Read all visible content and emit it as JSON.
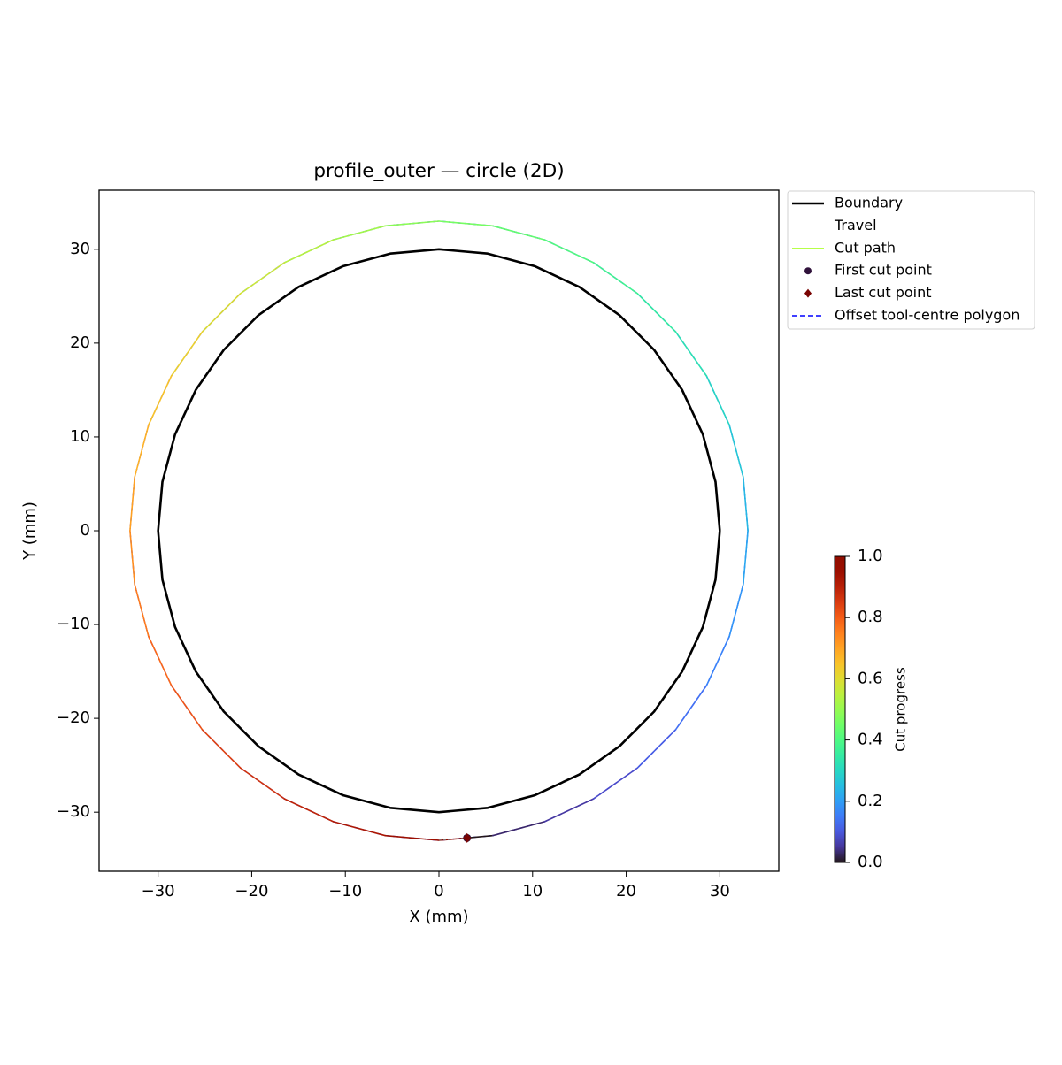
{
  "chart_data": {
    "type": "toolpath",
    "title": "profile_outer — circle (2D)",
    "xlabel": "X (mm)",
    "ylabel": "Y (mm)",
    "xlim": [
      -36.3,
      36.3
    ],
    "ylim": [
      -36.3,
      36.3
    ],
    "xticks": [
      {
        "value": -30,
        "label": "−30"
      },
      {
        "value": -20,
        "label": "−20"
      },
      {
        "value": -10,
        "label": "−10"
      },
      0,
      10,
      20,
      30
    ],
    "yticks": [
      {
        "value": -30,
        "label": "−30"
      },
      {
        "value": -20,
        "label": "−20"
      },
      {
        "value": -10,
        "label": "−10"
      },
      0,
      10,
      20,
      30
    ],
    "series": [
      {
        "name": "Boundary",
        "color": "#000000",
        "style": "solid",
        "x": [
          30,
          29.54,
          28.19,
          25.98,
          22.98,
          19.28,
          15,
          10.26,
          5.21,
          0,
          -5.21,
          -10.26,
          -15,
          -19.28,
          -22.98,
          -25.98,
          -28.19,
          -29.54,
          -30,
          -29.54,
          -28.19,
          -25.98,
          -22.98,
          -19.28,
          -15,
          -10.26,
          -5.21,
          0,
          5.21,
          10.26,
          15,
          19.28,
          22.98,
          25.98,
          28.19,
          29.54,
          30
        ],
        "y": [
          0,
          5.21,
          10.26,
          15,
          19.28,
          22.98,
          25.98,
          28.19,
          29.54,
          30,
          29.54,
          28.19,
          25.98,
          22.98,
          19.28,
          15,
          10.26,
          5.21,
          0,
          -5.21,
          -10.26,
          -15,
          -19.28,
          -22.98,
          -25.98,
          -28.19,
          -29.54,
          -30,
          -29.54,
          -28.19,
          -25.98,
          -22.98,
          -19.28,
          -15,
          -10.26,
          -5.21,
          0
        ]
      },
      {
        "name": "Travel",
        "color": "#808080",
        "style": "dashed",
        "x": [
          0,
          3
        ],
        "y": [
          -33,
          -32.75
        ]
      },
      {
        "name": "Cut path",
        "color": "#adff2f",
        "style": "solid",
        "x": [
          3,
          5.73,
          11.29,
          16.5,
          21.21,
          25.28,
          28.58,
          31.01,
          32.5,
          33,
          32.5,
          31.01,
          28.58,
          25.28,
          21.21,
          16.5,
          11.29,
          5.73,
          0,
          -5.73,
          -11.29,
          -16.5,
          -21.21,
          -25.28,
          -28.58,
          -31.01,
          -32.5,
          -33,
          -32.5,
          -31.01,
          -28.58,
          -25.28,
          -21.21,
          -16.5,
          -11.29,
          -5.73,
          0,
          3
        ],
        "y": [
          -32.75,
          -32.5,
          -31.01,
          -28.58,
          -25.28,
          -21.21,
          -16.5,
          -11.29,
          -5.73,
          0,
          5.73,
          11.29,
          16.5,
          21.21,
          25.28,
          28.58,
          31.01,
          32.5,
          33,
          32.5,
          31.01,
          28.58,
          25.28,
          21.21,
          16.5,
          11.29,
          5.73,
          0,
          -5.73,
          -11.29,
          -16.5,
          -21.21,
          -25.28,
          -28.58,
          -31.01,
          -32.5,
          -33,
          -32.75
        ],
        "progress": [
          0,
          0.027,
          0.054,
          0.081,
          0.108,
          0.135,
          0.162,
          0.189,
          0.216,
          0.243,
          0.27,
          0.297,
          0.324,
          0.351,
          0.378,
          0.405,
          0.432,
          0.459,
          0.486,
          0.514,
          0.541,
          0.568,
          0.595,
          0.622,
          0.649,
          0.676,
          0.703,
          0.73,
          0.757,
          0.784,
          0.811,
          0.838,
          0.865,
          0.892,
          0.919,
          0.946,
          0.973,
          1
        ]
      },
      {
        "name": "First cut point",
        "color": "#30123b",
        "marker": "circle",
        "x": [
          3
        ],
        "y": [
          -32.75
        ]
      },
      {
        "name": "Last cut point",
        "color": "#7a0403",
        "marker": "diamond",
        "x": [
          3
        ],
        "y": [
          -32.75
        ]
      },
      {
        "name": "Offset tool-centre polygon",
        "color": "#0000ff",
        "style": "dashed",
        "x": [
          33,
          32.5,
          31.01,
          28.58,
          25.28,
          21.21,
          16.5,
          11.29,
          5.73,
          0,
          -5.73,
          -11.29,
          -16.5,
          -21.21,
          -25.28,
          -28.58,
          -31.01,
          -32.5,
          -33,
          -32.5,
          -31.01,
          -28.58,
          -25.28,
          -21.21,
          -16.5,
          -11.29,
          -5.73,
          0,
          5.73,
          11.29,
          16.5,
          21.21,
          25.28,
          28.58,
          31.01,
          32.5,
          33
        ],
        "y": [
          0,
          5.73,
          11.29,
          16.5,
          21.21,
          25.28,
          28.58,
          31.01,
          32.5,
          33,
          32.5,
          31.01,
          28.58,
          25.28,
          21.21,
          16.5,
          11.29,
          5.73,
          0,
          -5.73,
          -11.29,
          -16.5,
          -21.21,
          -25.28,
          -28.58,
          -31.01,
          -32.5,
          -33,
          -32.5,
          -31.01,
          -28.58,
          -25.28,
          -21.21,
          -16.5,
          -11.29,
          -5.73,
          0
        ]
      }
    ],
    "legend": "upper-left-outside",
    "colorbar": {
      "label": "Cut progress",
      "colormap": "turbo",
      "lim": [
        0,
        1
      ],
      "ticks": [
        {
          "value": 0,
          "label": "0.0"
        },
        0.2,
        0.4,
        0.6,
        0.8,
        {
          "value": 1,
          "label": "1.0"
        }
      ]
    }
  }
}
